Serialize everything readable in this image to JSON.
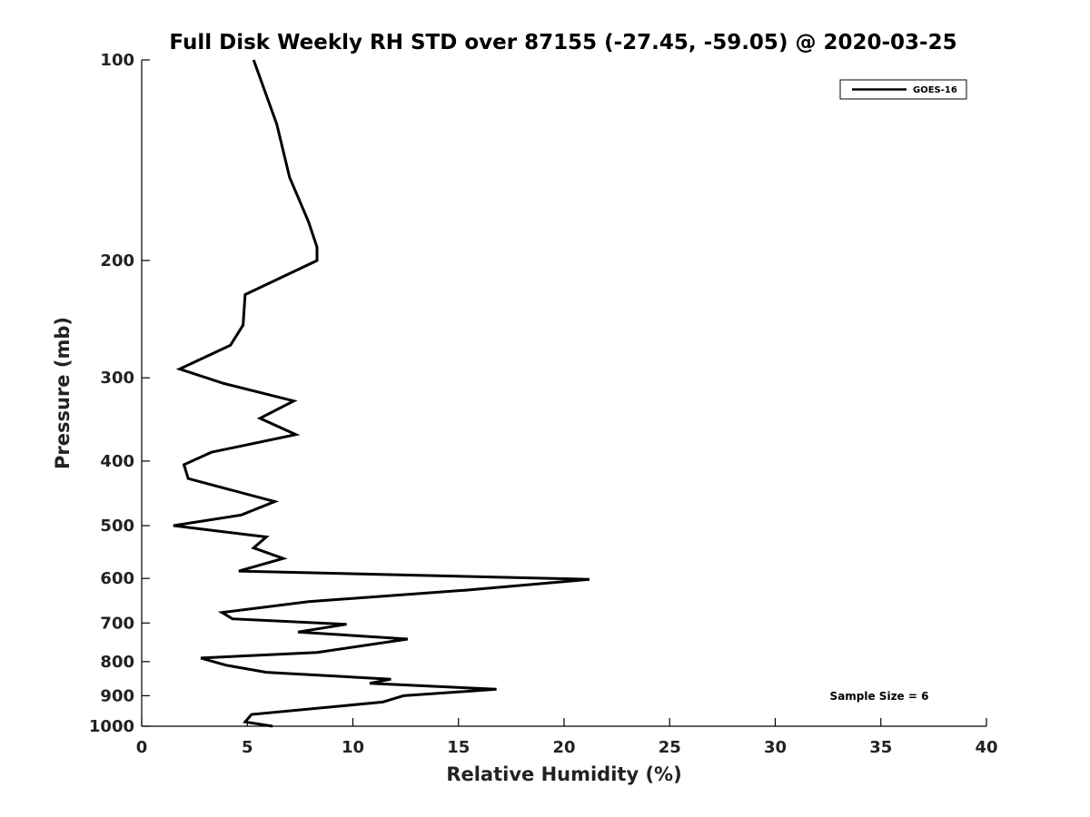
{
  "chart_data": {
    "type": "line",
    "title": "Full Disk Weekly RH STD over 87155 (-27.45, -59.05) @ 2020-03-25",
    "xlabel": "Relative Humidity (%)",
    "ylabel": "Pressure (mb)",
    "xlim": [
      0,
      40
    ],
    "ylim": [
      100,
      1000
    ],
    "y_scale": "log",
    "y_reversed": true,
    "x_ticks": [
      0,
      5,
      10,
      15,
      20,
      25,
      30,
      35,
      40
    ],
    "y_ticks": [
      100,
      200,
      300,
      400,
      500,
      600,
      700,
      800,
      900,
      1000
    ],
    "grid": false,
    "legend_position": "top-right",
    "annotation": "Sample Size = 6",
    "series": [
      {
        "name": "GOES-16",
        "color": "#000000",
        "points": [
          [
            5.3,
            100
          ],
          [
            6.4,
            125
          ],
          [
            7.0,
            150
          ],
          [
            7.9,
            175
          ],
          [
            8.3,
            191
          ],
          [
            8.3,
            200
          ],
          [
            4.9,
            225
          ],
          [
            4.8,
            250
          ],
          [
            4.2,
            268
          ],
          [
            1.8,
            291
          ],
          [
            3.9,
            306
          ],
          [
            7.2,
            325
          ],
          [
            5.6,
            345
          ],
          [
            7.3,
            365
          ],
          [
            3.3,
            388
          ],
          [
            2.0,
            405
          ],
          [
            2.2,
            425
          ],
          [
            6.3,
            460
          ],
          [
            4.7,
            482
          ],
          [
            1.5,
            500
          ],
          [
            5.9,
            520
          ],
          [
            5.3,
            540
          ],
          [
            6.7,
            560
          ],
          [
            4.6,
            585
          ],
          [
            21.2,
            602
          ],
          [
            15.3,
            625
          ],
          [
            7.9,
            650
          ],
          [
            3.8,
            675
          ],
          [
            4.3,
            690
          ],
          [
            9.7,
            703
          ],
          [
            7.4,
            722
          ],
          [
            12.6,
            740
          ],
          [
            8.3,
            775
          ],
          [
            2.8,
            790
          ],
          [
            4.0,
            810
          ],
          [
            5.9,
            830
          ],
          [
            11.8,
            850
          ],
          [
            10.8,
            862
          ],
          [
            16.8,
            880
          ],
          [
            12.4,
            900
          ],
          [
            11.4,
            920
          ],
          [
            5.2,
            960
          ],
          [
            4.9,
            985
          ],
          [
            6.2,
            1000
          ]
        ]
      }
    ]
  }
}
